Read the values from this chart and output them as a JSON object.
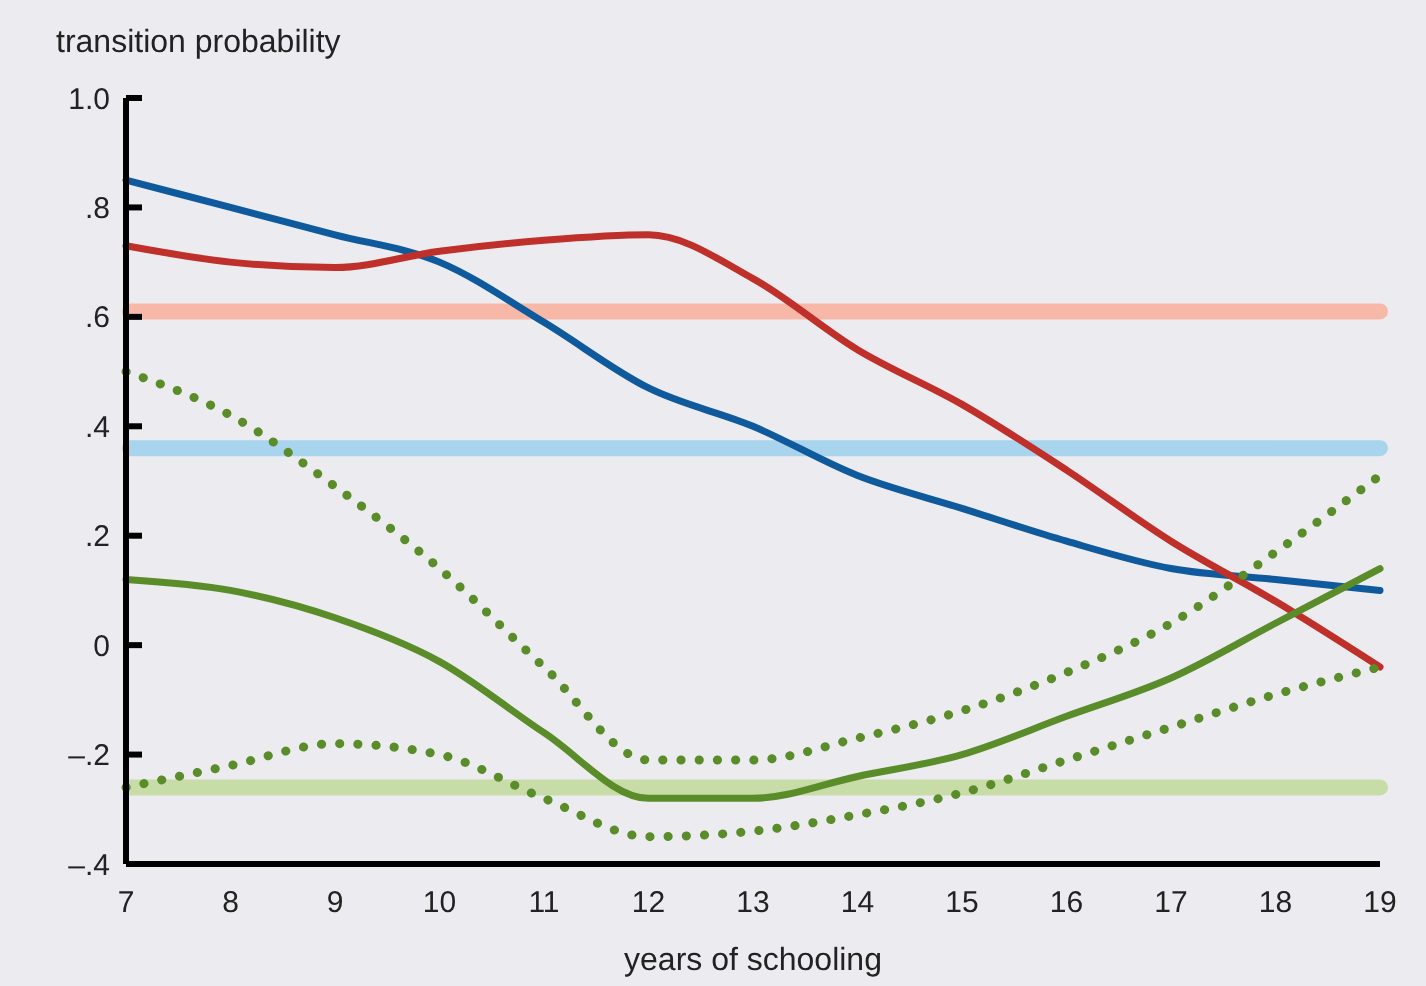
{
  "chart_data": {
    "type": "line",
    "ylabel": "transition probability",
    "xlabel": "years of schooling",
    "x": [
      7,
      8,
      9,
      10,
      11,
      12,
      13,
      14,
      15,
      16,
      17,
      18,
      19
    ],
    "xlim": [
      7,
      19
    ],
    "xticks": [
      7,
      8,
      9,
      10,
      11,
      12,
      13,
      14,
      15,
      16,
      17,
      18,
      19
    ],
    "ylim": [
      -0.4,
      1.0
    ],
    "yticks": [
      {
        "value": -0.4,
        "label": "–.4"
      },
      {
        "value": -0.2,
        "label": "–.2"
      },
      0,
      {
        "value": 0.2,
        "label": ".2"
      },
      {
        "value": 0.4,
        "label": ".4"
      },
      {
        "value": 0.6,
        "label": ".6"
      },
      {
        "value": 0.8,
        "label": ".8"
      },
      {
        "value": 1.0,
        "label": "1.0"
      }
    ],
    "grid": false,
    "ref_lines": [
      {
        "axis": "y",
        "value": 0.61,
        "color": "#f8b8a8"
      },
      {
        "axis": "y",
        "value": 0.36,
        "color": "#a8d4ee"
      },
      {
        "axis": "y",
        "value": -0.26,
        "color": "#c8dca8"
      }
    ],
    "series": [
      {
        "color": "#0f5a9c",
        "values": [
          0.85,
          0.8,
          0.75,
          0.7,
          0.59,
          0.47,
          0.4,
          0.31,
          0.25,
          0.19,
          0.14,
          0.12,
          0.1
        ]
      },
      {
        "color": "#c0302a",
        "values": [
          0.73,
          0.7,
          0.69,
          0.72,
          0.74,
          0.75,
          0.67,
          0.54,
          0.44,
          0.32,
          0.19,
          0.08,
          -0.04
        ]
      },
      {
        "color": "#5a8c2a",
        "values": [
          0.12,
          0.1,
          0.05,
          -0.03,
          -0.16,
          -0.28,
          -0.28,
          -0.24,
          -0.2,
          -0.13,
          -0.06,
          0.04,
          0.14
        ]
      },
      {
        "color": "#5a8c2a",
        "line_style": "dotted",
        "values": [
          0.5,
          0.42,
          0.29,
          0.14,
          -0.04,
          -0.21,
          -0.21,
          -0.17,
          -0.12,
          -0.05,
          0.04,
          0.17,
          0.31
        ]
      },
      {
        "color": "#5a8c2a",
        "line_style": "dotted",
        "values": [
          -0.26,
          -0.22,
          -0.18,
          -0.2,
          -0.28,
          -0.35,
          -0.34,
          -0.31,
          -0.27,
          -0.21,
          -0.15,
          -0.09,
          -0.04
        ]
      }
    ]
  }
}
